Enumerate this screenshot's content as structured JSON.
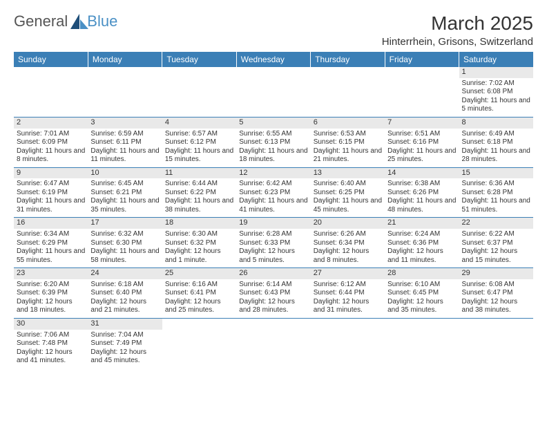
{
  "logo": {
    "text1": "General",
    "text2": "Blue",
    "color1": "#555",
    "color2": "#4a90c5"
  },
  "title": {
    "month": "March 2025",
    "location": "Hinterrhein, Grisons, Switzerland"
  },
  "colors": {
    "header_bg": "#3b7fb6",
    "header_fg": "#ffffff",
    "day_bg": "#e9e9e9",
    "border": "#3b7fb6",
    "text": "#333333"
  },
  "weekdays": [
    "Sunday",
    "Monday",
    "Tuesday",
    "Wednesday",
    "Thursday",
    "Friday",
    "Saturday"
  ],
  "grid": [
    [
      null,
      null,
      null,
      null,
      null,
      null,
      {
        "n": 1,
        "sr": "7:02 AM",
        "ss": "6:08 PM",
        "dl": "11 hours and 5 minutes."
      }
    ],
    [
      {
        "n": 2,
        "sr": "7:01 AM",
        "ss": "6:09 PM",
        "dl": "11 hours and 8 minutes."
      },
      {
        "n": 3,
        "sr": "6:59 AM",
        "ss": "6:11 PM",
        "dl": "11 hours and 11 minutes."
      },
      {
        "n": 4,
        "sr": "6:57 AM",
        "ss": "6:12 PM",
        "dl": "11 hours and 15 minutes."
      },
      {
        "n": 5,
        "sr": "6:55 AM",
        "ss": "6:13 PM",
        "dl": "11 hours and 18 minutes."
      },
      {
        "n": 6,
        "sr": "6:53 AM",
        "ss": "6:15 PM",
        "dl": "11 hours and 21 minutes."
      },
      {
        "n": 7,
        "sr": "6:51 AM",
        "ss": "6:16 PM",
        "dl": "11 hours and 25 minutes."
      },
      {
        "n": 8,
        "sr": "6:49 AM",
        "ss": "6:18 PM",
        "dl": "11 hours and 28 minutes."
      }
    ],
    [
      {
        "n": 9,
        "sr": "6:47 AM",
        "ss": "6:19 PM",
        "dl": "11 hours and 31 minutes."
      },
      {
        "n": 10,
        "sr": "6:45 AM",
        "ss": "6:21 PM",
        "dl": "11 hours and 35 minutes."
      },
      {
        "n": 11,
        "sr": "6:44 AM",
        "ss": "6:22 PM",
        "dl": "11 hours and 38 minutes."
      },
      {
        "n": 12,
        "sr": "6:42 AM",
        "ss": "6:23 PM",
        "dl": "11 hours and 41 minutes."
      },
      {
        "n": 13,
        "sr": "6:40 AM",
        "ss": "6:25 PM",
        "dl": "11 hours and 45 minutes."
      },
      {
        "n": 14,
        "sr": "6:38 AM",
        "ss": "6:26 PM",
        "dl": "11 hours and 48 minutes."
      },
      {
        "n": 15,
        "sr": "6:36 AM",
        "ss": "6:28 PM",
        "dl": "11 hours and 51 minutes."
      }
    ],
    [
      {
        "n": 16,
        "sr": "6:34 AM",
        "ss": "6:29 PM",
        "dl": "11 hours and 55 minutes."
      },
      {
        "n": 17,
        "sr": "6:32 AM",
        "ss": "6:30 PM",
        "dl": "11 hours and 58 minutes."
      },
      {
        "n": 18,
        "sr": "6:30 AM",
        "ss": "6:32 PM",
        "dl": "12 hours and 1 minute."
      },
      {
        "n": 19,
        "sr": "6:28 AM",
        "ss": "6:33 PM",
        "dl": "12 hours and 5 minutes."
      },
      {
        "n": 20,
        "sr": "6:26 AM",
        "ss": "6:34 PM",
        "dl": "12 hours and 8 minutes."
      },
      {
        "n": 21,
        "sr": "6:24 AM",
        "ss": "6:36 PM",
        "dl": "12 hours and 11 minutes."
      },
      {
        "n": 22,
        "sr": "6:22 AM",
        "ss": "6:37 PM",
        "dl": "12 hours and 15 minutes."
      }
    ],
    [
      {
        "n": 23,
        "sr": "6:20 AM",
        "ss": "6:39 PM",
        "dl": "12 hours and 18 minutes."
      },
      {
        "n": 24,
        "sr": "6:18 AM",
        "ss": "6:40 PM",
        "dl": "12 hours and 21 minutes."
      },
      {
        "n": 25,
        "sr": "6:16 AM",
        "ss": "6:41 PM",
        "dl": "12 hours and 25 minutes."
      },
      {
        "n": 26,
        "sr": "6:14 AM",
        "ss": "6:43 PM",
        "dl": "12 hours and 28 minutes."
      },
      {
        "n": 27,
        "sr": "6:12 AM",
        "ss": "6:44 PM",
        "dl": "12 hours and 31 minutes."
      },
      {
        "n": 28,
        "sr": "6:10 AM",
        "ss": "6:45 PM",
        "dl": "12 hours and 35 minutes."
      },
      {
        "n": 29,
        "sr": "6:08 AM",
        "ss": "6:47 PM",
        "dl": "12 hours and 38 minutes."
      }
    ],
    [
      {
        "n": 30,
        "sr": "7:06 AM",
        "ss": "7:48 PM",
        "dl": "12 hours and 41 minutes."
      },
      {
        "n": 31,
        "sr": "7:04 AM",
        "ss": "7:49 PM",
        "dl": "12 hours and 45 minutes."
      },
      null,
      null,
      null,
      null,
      null
    ]
  ],
  "labels": {
    "sunrise": "Sunrise:",
    "sunset": "Sunset:",
    "daylight": "Daylight:"
  }
}
